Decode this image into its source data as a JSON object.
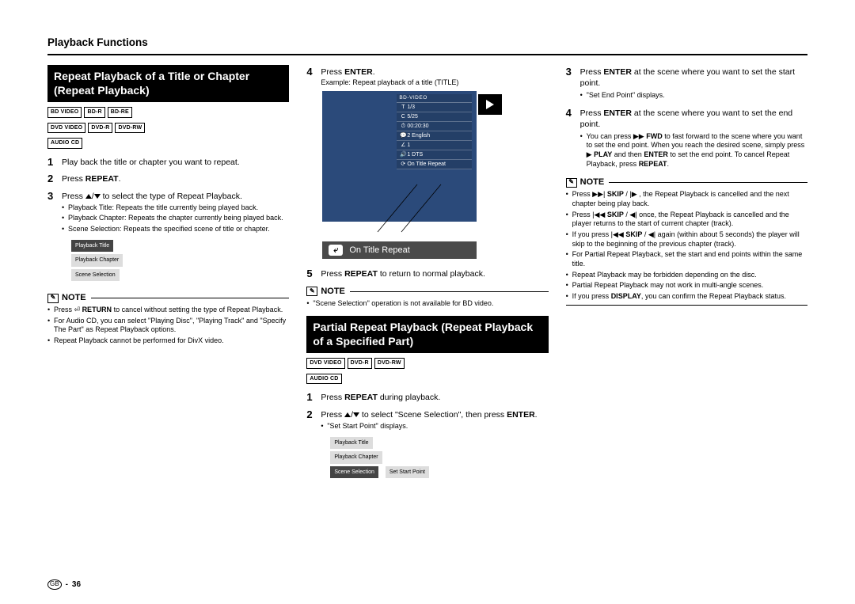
{
  "page": {
    "title": "Playback Functions",
    "footer_region": "GB",
    "footer_page": "36"
  },
  "col1": {
    "heading": "Repeat Playback of a Title or Chapter (Repeat Playback)",
    "badges": [
      "BD VIDEO",
      "BD-R",
      "BD-RE",
      "DVD VIDEO",
      "DVD-R",
      "DVD-RW",
      "AUDIO CD"
    ],
    "step1": "Play back the title or chapter you want to repeat.",
    "step2_pre": "Press ",
    "step2_b": "REPEAT",
    "step2_post": ".",
    "step3_pre": "Press ",
    "step3_mid": " to select the type of Repeat Playback.",
    "step3_bullets": [
      "Playback Title: Repeats the title currently being played back.",
      "Playback Chapter: Repeats the chapter currently being played back.",
      "Scene Selection: Repeats the specified scene of title or chapter."
    ],
    "menu": {
      "sel": "Playback Title",
      "items": [
        "Playback Chapter",
        "Scene Selection"
      ]
    },
    "note_label": "NOTE",
    "note_bullets_html": [
      "Press ⏎ <b>RETURN</b> to cancel without setting the type of Repeat Playback.",
      "For Audio CD, you can select \"Playing Disc\", \"Playing Track\" and \"Specify The Part\" as Repeat Playback options.",
      "Repeat Playback cannot be performed for DivX video."
    ]
  },
  "col2": {
    "step4_pre": "Press ",
    "step4_b": "ENTER",
    "step4_post": ".",
    "step4_example": "Example: Repeat playback of a title (TITLE)",
    "osd": {
      "header": "BD-VIDEO",
      "rows": [
        {
          "ic": "T",
          "tx": "1/3"
        },
        {
          "ic": "C",
          "tx": "5/25"
        },
        {
          "ic": "⏱",
          "tx": "00:20:30"
        },
        {
          "ic": "💬",
          "tx": "2 English"
        },
        {
          "ic": "∠",
          "tx": "1"
        },
        {
          "ic": "🔊",
          "tx": "1 DTS"
        },
        {
          "ic": "⟳",
          "tx": "On Title Repeat"
        }
      ]
    },
    "callout": "On Title Repeat",
    "step5_pre": "Press ",
    "step5_b": "REPEAT",
    "step5_post": " to return to normal playback.",
    "note_label": "NOTE",
    "note_bullets": [
      "\"Scene Selection\" operation is not available for BD video."
    ],
    "heading2": "Partial Repeat Playback (Repeat Playback of a Specified Part)",
    "badges2": [
      "DVD VIDEO",
      "DVD-R",
      "DVD-RW",
      "AUDIO CD"
    ],
    "b_step1_pre": "Press ",
    "b_step1_b": "REPEAT",
    "b_step1_post": " during playback.",
    "b_step2_pre": "Press ",
    "b_step2_mid": " to select \"Scene Selection\", then press ",
    "b_step2_b": "ENTER",
    "b_step2_post": ".",
    "b_step2_bullet": "\"Set Start Point\" displays.",
    "menu2": {
      "items": [
        "Playback Title",
        "Playback Chapter"
      ],
      "sel": "Scene Selection",
      "side": "Set Start Point"
    }
  },
  "col3": {
    "step3_pre": "Press ",
    "step3_b": "ENTER",
    "step3_post": " at the scene where you want to set the start point.",
    "step3_bullet": "\"Set End Point\" displays.",
    "step4_pre": "Press ",
    "step4_b": "ENTER",
    "step4_post": " at the scene where you want to set the end point.",
    "step4_bullet_html": "You can press ▶▶ <b>FWD</b> to fast forward to the scene where you want to set the end point. When you reach the desired scene, simply press ▶ <b>PLAY</b> and then <b>ENTER</b> to set the end point. To cancel Repeat Playback, press <b>REPEAT</b>.",
    "note_label": "NOTE",
    "note_bullets_html": [
      "Press ▶▶| <b>SKIP</b> / |▶ , the Repeat Playback is cancelled and the next chapter being play back.",
      "Press |◀◀ <b>SKIP</b> / ◀| once, the Repeat Playback is cancelled and the player returns to the start of current chapter (track).",
      "If you press |◀◀ <b>SKIP</b> / ◀| again (within about 5 seconds) the player will skip to the beginning of the previous chapter (track).",
      "For Partial Repeat Playback, set the start and end points within the same title.",
      "Repeat Playback may be forbidden depending on the disc.",
      "Partial Repeat Playback may not work in multi-angle scenes.",
      "If you press <b>DISPLAY</b>, you can confirm the Repeat Playback status."
    ]
  }
}
